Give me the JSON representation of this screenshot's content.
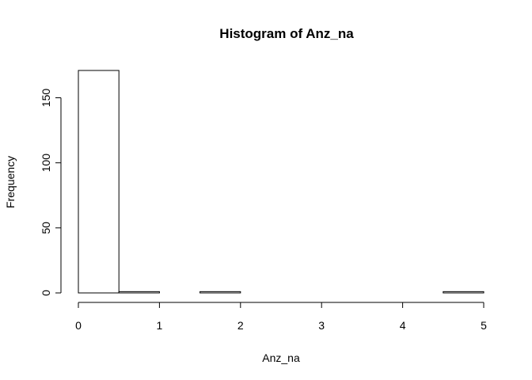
{
  "chart_data": {
    "type": "bar",
    "title": "Histogram of Anz_na",
    "xlabel": "Anz_na",
    "ylabel": "Frequency",
    "bins": [
      {
        "from": 0.0,
        "to": 0.5,
        "value": 171
      },
      {
        "from": 0.5,
        "to": 1.0,
        "value": 1
      },
      {
        "from": 1.0,
        "to": 1.5,
        "value": 0
      },
      {
        "from": 1.5,
        "to": 2.0,
        "value": 1
      },
      {
        "from": 2.0,
        "to": 2.5,
        "value": 0
      },
      {
        "from": 2.5,
        "to": 3.0,
        "value": 0
      },
      {
        "from": 3.0,
        "to": 3.5,
        "value": 0
      },
      {
        "from": 3.5,
        "to": 4.0,
        "value": 0
      },
      {
        "from": 4.0,
        "to": 4.5,
        "value": 0
      },
      {
        "from": 4.5,
        "to": 5.0,
        "value": 1
      }
    ],
    "x_ticks": [
      0,
      1,
      2,
      3,
      4,
      5
    ],
    "y_ticks": [
      0,
      50,
      100,
      150
    ],
    "xlim": [
      0,
      5
    ],
    "ylim": [
      0,
      171
    ],
    "grid": false,
    "legend": "none"
  }
}
